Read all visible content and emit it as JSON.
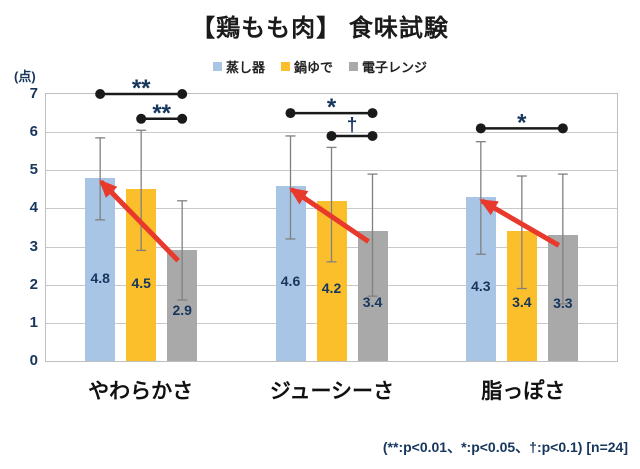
{
  "chart_data": {
    "type": "bar",
    "title": "【鶏もも肉】 食味試験",
    "ylabel": "(点)",
    "xlabel": "",
    "ylim": [
      0,
      7
    ],
    "yticks": [
      0,
      1,
      2,
      3,
      4,
      5,
      6,
      7
    ],
    "grid": true,
    "legend_position": "top",
    "categories": [
      "やわらかさ",
      "ジューシーさ",
      "脂っぽさ"
    ],
    "series": [
      {
        "name": "蒸し器",
        "color": "#A8C5E5",
        "values": [
          4.8,
          4.6,
          4.3
        ],
        "err_low": [
          3.7,
          3.2,
          2.8
        ],
        "err_high": [
          5.85,
          5.9,
          5.75
        ]
      },
      {
        "name": "鍋ゆで",
        "color": "#FBBF2B",
        "values": [
          4.5,
          4.2,
          3.4
        ],
        "err_low": [
          2.9,
          2.6,
          1.9
        ],
        "err_high": [
          6.05,
          5.6,
          4.85
        ]
      },
      {
        "name": "電子レンジ",
        "color": "#A9A9A9",
        "values": [
          2.9,
          3.4,
          3.3
        ],
        "err_low": [
          1.6,
          1.7,
          1.5
        ],
        "err_high": [
          4.2,
          4.9,
          4.9
        ]
      }
    ],
    "significance_brackets": [
      {
        "group": 0,
        "from_series": 0,
        "to_series": 2,
        "y": 7.0,
        "label": "**"
      },
      {
        "group": 0,
        "from_series": 1,
        "to_series": 2,
        "y": 6.35,
        "label": "**"
      },
      {
        "group": 1,
        "from_series": 0,
        "to_series": 2,
        "y": 6.5,
        "label": "*"
      },
      {
        "group": 1,
        "from_series": 1,
        "to_series": 2,
        "y": 5.9,
        "label": "†"
      },
      {
        "group": 2,
        "from_series": 0,
        "to_series": 2,
        "y": 6.1,
        "label": "*"
      }
    ],
    "arrows": [
      {
        "group": 0,
        "from_series": 2,
        "to_series": 0
      },
      {
        "group": 1,
        "from_series": 2,
        "to_series": 0
      },
      {
        "group": 2,
        "from_series": 2,
        "to_series": 0
      }
    ],
    "footnote": "(**:p<0.01、*:p<0.05、†:p<0.1) [n=24]",
    "colors": {
      "arrow_red": "#E8392C",
      "axis_text": "#17365D",
      "gridline": "#C9C9C9",
      "plot_border": "#BFBFBF",
      "bracket_black": "#1A1A1A",
      "error_bar_gray": "#808080"
    }
  }
}
